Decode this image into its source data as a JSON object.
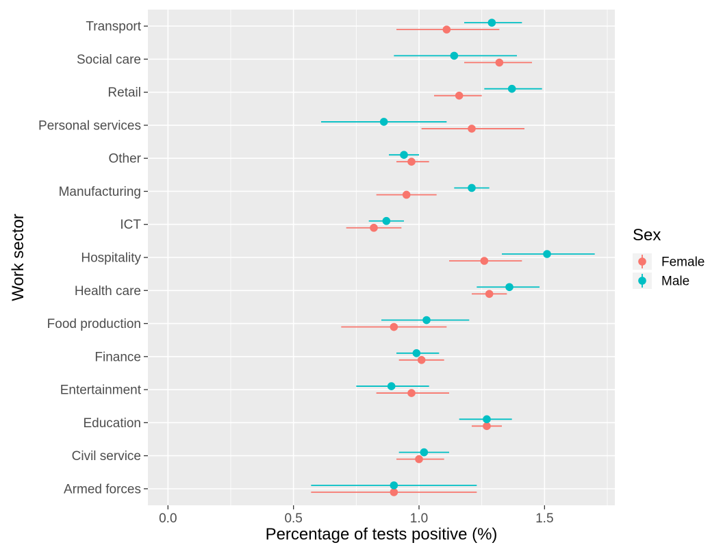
{
  "chart_data": {
    "type": "dot-and-whisker",
    "xlabel": "Percentage of tests positive (%)",
    "ylabel": "Work sector",
    "xlim": [
      -0.08,
      1.78
    ],
    "x_ticks": [
      0.0,
      0.5,
      1.0,
      1.5
    ],
    "x_tick_labels": [
      "0.0",
      "0.5",
      "1.0",
      "1.5"
    ],
    "grid": true,
    "legend": {
      "title": "Sex",
      "placement": "right",
      "entries": [
        "Female",
        "Male"
      ]
    },
    "categories": [
      "Armed forces",
      "Civil service",
      "Education",
      "Entertainment",
      "Finance",
      "Food production",
      "Health care",
      "Hospitality",
      "ICT",
      "Manufacturing",
      "Other",
      "Personal services",
      "Retail",
      "Social care",
      "Transport"
    ],
    "series": [
      {
        "name": "Female",
        "color": "#F8766D",
        "estimate": [
          0.9,
          1.0,
          1.27,
          0.97,
          1.01,
          0.9,
          1.28,
          1.26,
          0.82,
          0.95,
          0.97,
          1.21,
          1.16,
          1.32,
          1.11
        ],
        "lower": [
          0.57,
          0.91,
          1.21,
          0.83,
          0.92,
          0.69,
          1.21,
          1.12,
          0.71,
          0.83,
          0.91,
          1.01,
          1.06,
          1.18,
          0.91
        ],
        "upper": [
          1.23,
          1.1,
          1.33,
          1.12,
          1.1,
          1.11,
          1.35,
          1.41,
          0.93,
          1.07,
          1.04,
          1.42,
          1.25,
          1.45,
          1.32
        ]
      },
      {
        "name": "Male",
        "color": "#00BFC4",
        "estimate": [
          0.9,
          1.02,
          1.27,
          0.89,
          0.99,
          1.03,
          1.36,
          1.51,
          0.87,
          1.21,
          0.94,
          0.86,
          1.37,
          1.14,
          1.29
        ],
        "lower": [
          0.57,
          0.92,
          1.16,
          0.75,
          0.91,
          0.85,
          1.23,
          1.33,
          0.8,
          1.14,
          0.88,
          0.61,
          1.26,
          0.9,
          1.18
        ],
        "upper": [
          1.23,
          1.12,
          1.37,
          1.04,
          1.08,
          1.2,
          1.48,
          1.7,
          0.94,
          1.28,
          1.0,
          1.11,
          1.49,
          1.39,
          1.41
        ]
      }
    ]
  }
}
